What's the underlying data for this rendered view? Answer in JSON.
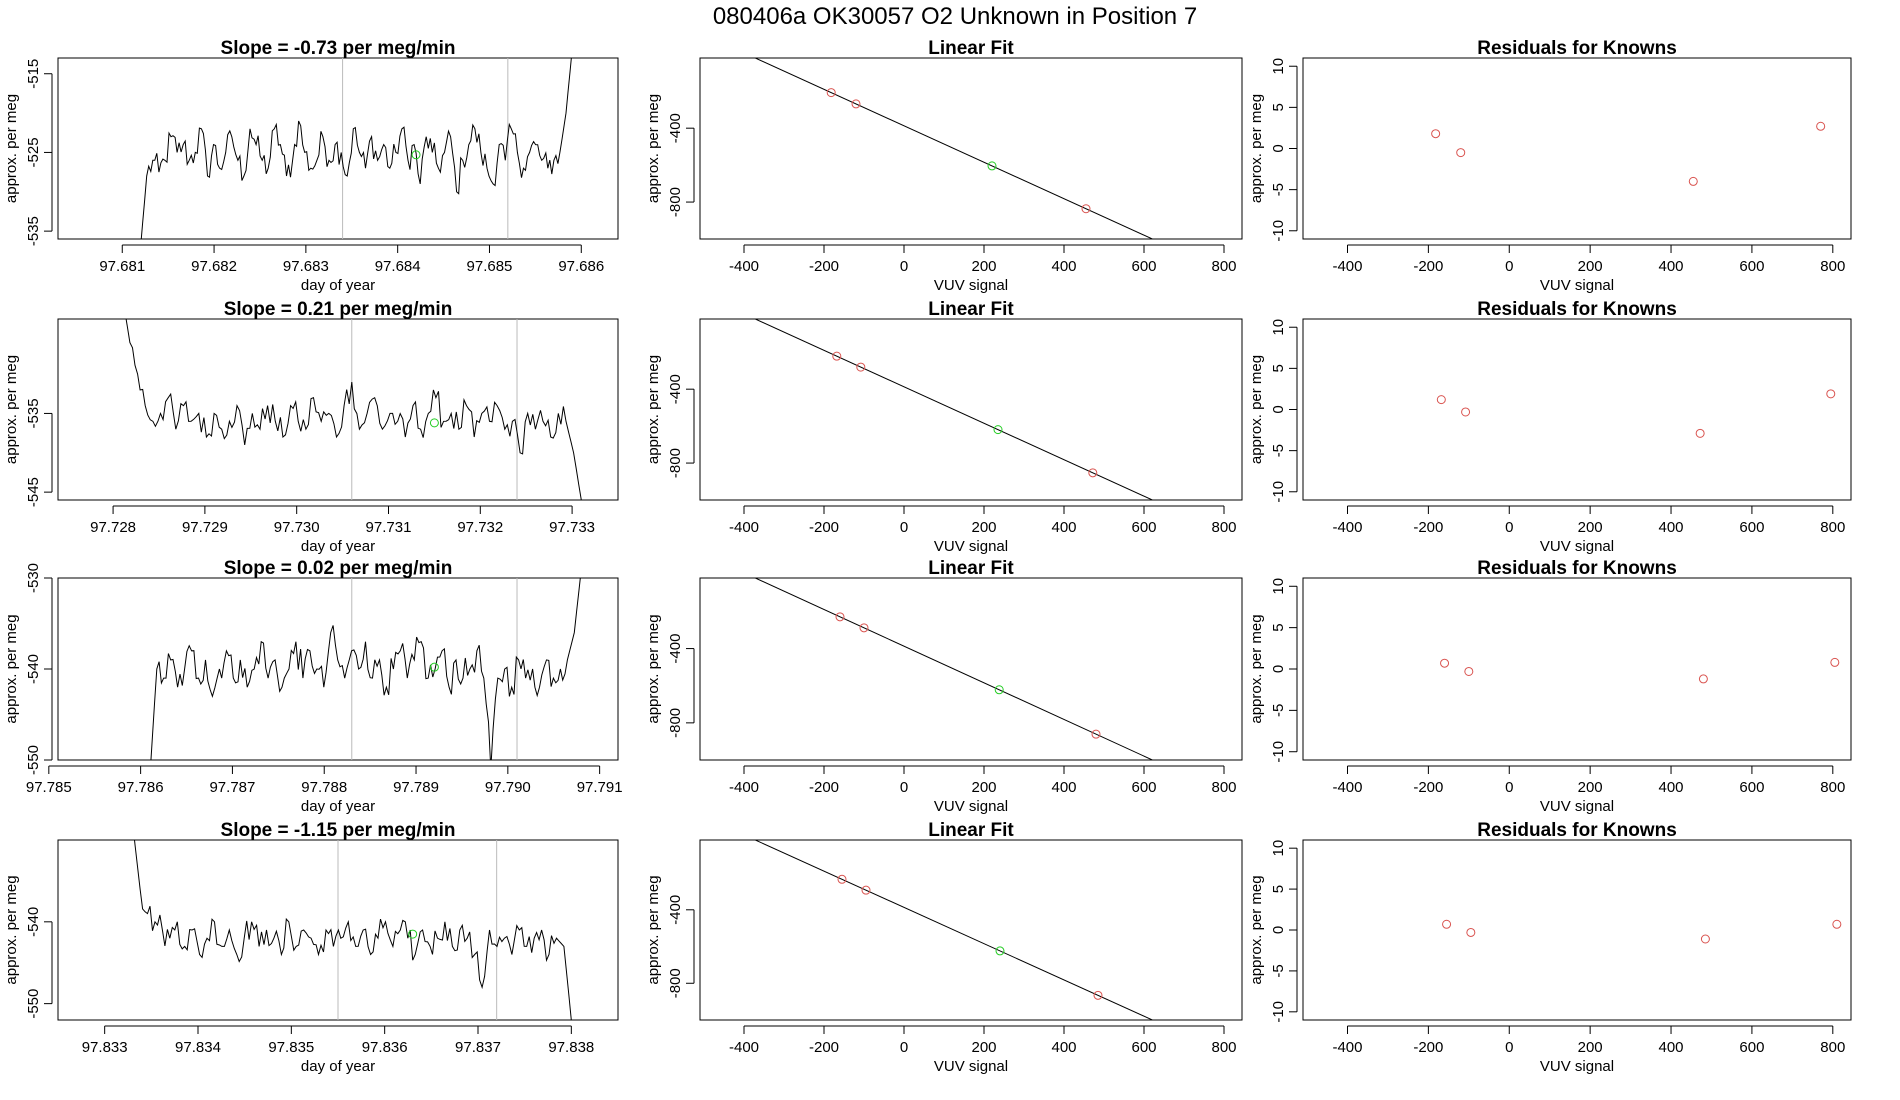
{
  "page": {
    "title": "080406a      OK30057   O2 Unknown in Position  7"
  },
  "colors": {
    "known": "#d9534f",
    "unknown": "#22cc22",
    "line": "#000000",
    "vline": "#bbbbbb"
  },
  "chart_data": [
    {
      "type": "line",
      "row": 0,
      "title": "Slope =  -0.73  per meg/min",
      "xlabel": "day of year",
      "ylabel": "approx. per meg",
      "xlim": [
        97.6803,
        97.6864
      ],
      "ylim": [
        -536,
        -513
      ],
      "xticks": [
        "97.681",
        "97.682",
        "97.683",
        "97.684",
        "97.685",
        "97.686"
      ],
      "yticks": [
        "-535",
        "-525",
        "-515"
      ],
      "vlines": [
        97.6834,
        97.6852
      ],
      "unknown_point": [
        97.6842,
        -525.3
      ],
      "series_start": 97.6812,
      "series_end": 97.6859,
      "series_y": [
        -537,
        -528,
        -526,
        -527.5,
        -526,
        -523,
        -525,
        -524,
        -526,
        -525,
        -522,
        -528,
        -524,
        -527,
        -525,
        -523,
        -526,
        -528,
        -522,
        -524,
        -526,
        -527,
        -522,
        -524,
        -528,
        -526,
        -521,
        -525,
        -527,
        -526,
        -523,
        -526,
        -524,
        -525,
        -528,
        -522,
        -525,
        -527,
        -523,
        -526,
        -524,
        -527,
        -525,
        -522,
        -526,
        -524,
        -529,
        -523,
        -525,
        -527,
        -525,
        -523,
        -530,
        -526,
        -524,
        -522,
        -525,
        -527,
        -529,
        -524,
        -526,
        -522,
        -525,
        -527,
        -525,
        -524,
        -526,
        -527,
        -526,
        -525,
        -520,
        -512
      ],
      "series_noise": 1.9
    },
    {
      "type": "scatter",
      "row": 0,
      "title": "Linear Fit",
      "xlabel": "VUV signal",
      "ylabel": "approx. per meg",
      "xlim": [
        -510,
        845
      ],
      "ylim": [
        -1000,
        -20
      ],
      "xticks": [
        -400,
        -200,
        0,
        200,
        400,
        600,
        800
      ],
      "yticks": [
        -400,
        -800
      ],
      "fit": {
        "slope": -0.987,
        "intercept": -387
      },
      "knowns_x": [
        -182,
        -120,
        455,
        770
      ],
      "unknown_x": 220
    },
    {
      "type": "scatter",
      "row": 0,
      "title": "Residuals for Knowns",
      "xlabel": "VUV signal",
      "ylabel": "approx. per meg",
      "xlim": [
        -510,
        845
      ],
      "ylim": [
        -11,
        11
      ],
      "xticks": [
        -400,
        -200,
        0,
        200,
        400,
        600,
        800
      ],
      "yticks": [
        10,
        5,
        0,
        -5,
        -10
      ],
      "x": [
        -182,
        -120,
        455,
        770
      ],
      "y": [
        1.8,
        -0.5,
        -4.0,
        2.7
      ]
    },
    {
      "type": "line",
      "row": 1,
      "title": "Slope =  0.21  per meg/min",
      "xlabel": "day of year",
      "ylabel": "approx. per meg",
      "xlim": [
        97.7274,
        97.7335
      ],
      "ylim": [
        -546,
        -523
      ],
      "xticks": [
        "97.728",
        "97.729",
        "97.730",
        "97.731",
        "97.732",
        "97.733"
      ],
      "yticks": [
        "-545",
        "-535"
      ],
      "vlines": [
        97.7306,
        97.7324
      ],
      "unknown_point": [
        97.7315,
        -536.2
      ],
      "series_start": 97.7281,
      "series_end": 97.7331,
      "series_y": [
        -520,
        -526,
        -530,
        -534,
        -536,
        -535,
        -533,
        -537,
        -534,
        -536,
        -535,
        -538,
        -535,
        -537,
        -536,
        -534,
        -539,
        -535,
        -537,
        -534,
        -536,
        -538,
        -534,
        -536,
        -537,
        -533,
        -536,
        -535,
        -538,
        -534,
        -531,
        -537,
        -535,
        -533,
        -537,
        -535,
        -536,
        -538,
        -534,
        -537,
        -535,
        -533,
        -536,
        -535,
        -537,
        -534,
        -538,
        -535,
        -536,
        -534,
        -537,
        -536,
        -540,
        -535,
        -537,
        -536,
        -538,
        -535,
        -536,
        -540,
        -546
      ],
      "series_noise": 1.9
    },
    {
      "type": "scatter",
      "row": 1,
      "title": "Linear Fit",
      "xlabel": "VUV signal",
      "ylabel": "approx. per meg",
      "xlim": [
        -510,
        845
      ],
      "ylim": [
        -1000,
        -20
      ],
      "xticks": [
        -400,
        -200,
        0,
        200,
        400,
        600,
        800
      ],
      "yticks": [
        -400,
        -800
      ],
      "fit": {
        "slope": -0.987,
        "intercept": -387
      },
      "knowns_x": [
        -168,
        -108,
        472,
        795
      ],
      "unknown_x": 235
    },
    {
      "type": "scatter",
      "row": 1,
      "title": "Residuals for Knowns",
      "xlabel": "VUV signal",
      "ylabel": "approx. per meg",
      "xlim": [
        -510,
        845
      ],
      "ylim": [
        -11,
        11
      ],
      "xticks": [
        -400,
        -200,
        0,
        200,
        400,
        600,
        800
      ],
      "yticks": [
        10,
        5,
        0,
        -5,
        -10
      ],
      "x": [
        -168,
        -108,
        472,
        795
      ],
      "y": [
        1.2,
        -0.3,
        -2.9,
        1.9
      ]
    },
    {
      "type": "line",
      "row": 2,
      "title": "Slope =  0.02  per meg/min",
      "xlabel": "day of year",
      "ylabel": "approx. per meg",
      "xlim": [
        97.7851,
        97.7912
      ],
      "ylim": [
        -550,
        -530
      ],
      "xticks": [
        "97.785",
        "97.786",
        "97.787",
        "97.788",
        "97.789",
        "97.790",
        "97.791"
      ],
      "yticks": [
        "-550",
        "-540",
        "-530"
      ],
      "vlines": [
        97.7883,
        97.7901
      ],
      "unknown_point": [
        97.7892,
        -539.8
      ],
      "series_start": 97.7861,
      "series_end": 97.7908,
      "series_y": [
        -552,
        -540,
        -541,
        -539,
        -542,
        -540,
        -538,
        -541,
        -539,
        -543,
        -540,
        -538,
        -541,
        -539,
        -542,
        -540,
        -537,
        -541,
        -539,
        -542,
        -540,
        -537,
        -541,
        -538,
        -540,
        -542,
        -536,
        -539,
        -541,
        -538,
        -540,
        -537,
        -541,
        -539,
        -542,
        -540,
        -538,
        -541,
        -539,
        -537,
        -541,
        -540,
        -538,
        -542,
        -539,
        -541,
        -540,
        -538,
        -541,
        -551,
        -541,
        -540,
        -542,
        -539,
        -541,
        -540,
        -542,
        -539,
        -541,
        -540,
        -539,
        -536,
        -529
      ],
      "series_noise": 1.9
    },
    {
      "type": "scatter",
      "row": 2,
      "title": "Linear Fit",
      "xlabel": "VUV signal",
      "ylabel": "approx. per meg",
      "xlim": [
        -510,
        845
      ],
      "ylim": [
        -1000,
        -20
      ],
      "xticks": [
        -400,
        -200,
        0,
        200,
        400,
        600,
        800
      ],
      "yticks": [
        -400,
        -800
      ],
      "fit": {
        "slope": -0.987,
        "intercept": -387
      },
      "knowns_x": [
        -160,
        -100,
        480,
        805
      ],
      "unknown_x": 238
    },
    {
      "type": "scatter",
      "row": 2,
      "title": "Residuals for Knowns",
      "xlabel": "VUV signal",
      "ylabel": "approx. per meg",
      "xlim": [
        -510,
        845
      ],
      "ylim": [
        -11,
        11
      ],
      "xticks": [
        -400,
        -200,
        0,
        200,
        400,
        600,
        800
      ],
      "yticks": [
        10,
        5,
        0,
        -5,
        -10
      ],
      "x": [
        -160,
        -100,
        480,
        805
      ],
      "y": [
        0.7,
        -0.3,
        -1.2,
        0.8
      ]
    },
    {
      "type": "line",
      "row": 3,
      "title": "Slope =  -1.15  per meg/min",
      "xlabel": "day of year",
      "ylabel": "approx. per meg",
      "xlim": [
        97.8325,
        97.8385
      ],
      "ylim": [
        -552,
        -530
      ],
      "xticks": [
        "97.833",
        "97.834",
        "97.835",
        "97.836",
        "97.837",
        "97.838"
      ],
      "yticks": [
        "-550",
        "-540"
      ],
      "vlines": [
        97.8355,
        97.8372
      ],
      "unknown_point": [
        97.8363,
        -541.5
      ],
      "series_start": 97.8333,
      "series_end": 97.838,
      "series_y": [
        -528,
        -536,
        -539,
        -540,
        -541,
        -542,
        -540,
        -543,
        -541,
        -544,
        -542,
        -540,
        -543,
        -541,
        -544,
        -542,
        -540,
        -543,
        -541,
        -542,
        -544,
        -540,
        -543,
        -541,
        -542,
        -544,
        -541,
        -543,
        -542,
        -540,
        -543,
        -541,
        -544,
        -542,
        -540,
        -543,
        -541,
        -542,
        -544,
        -541,
        -543,
        -542,
        -540,
        -543,
        -541,
        -542,
        -544,
        -548,
        -541,
        -543,
        -542,
        -544,
        -541,
        -543,
        -542,
        -541,
        -544,
        -542,
        -543,
        -552
      ],
      "series_noise": 1.8
    },
    {
      "type": "scatter",
      "row": 3,
      "title": "Linear Fit",
      "xlabel": "VUV signal",
      "ylabel": "approx. per meg",
      "xlim": [
        -510,
        845
      ],
      "ylim": [
        -1000,
        -20
      ],
      "xticks": [
        -400,
        -200,
        0,
        200,
        400,
        600,
        800
      ],
      "yticks": [
        -400,
        -800
      ],
      "fit": {
        "slope": -0.987,
        "intercept": -387
      },
      "knowns_x": [
        -155,
        -95,
        485,
        810
      ],
      "unknown_x": 240
    },
    {
      "type": "scatter",
      "row": 3,
      "title": "Residuals for Knowns",
      "xlabel": "VUV signal",
      "ylabel": "approx. per meg",
      "xlim": [
        -510,
        845
      ],
      "ylim": [
        -11,
        11
      ],
      "xticks": [
        -400,
        -200,
        0,
        200,
        400,
        600,
        800
      ],
      "yticks": [
        10,
        5,
        0,
        -5,
        -10
      ],
      "x": [
        -155,
        -95,
        485,
        810
      ],
      "y": [
        0.7,
        -0.3,
        -1.1,
        0.7
      ]
    }
  ]
}
